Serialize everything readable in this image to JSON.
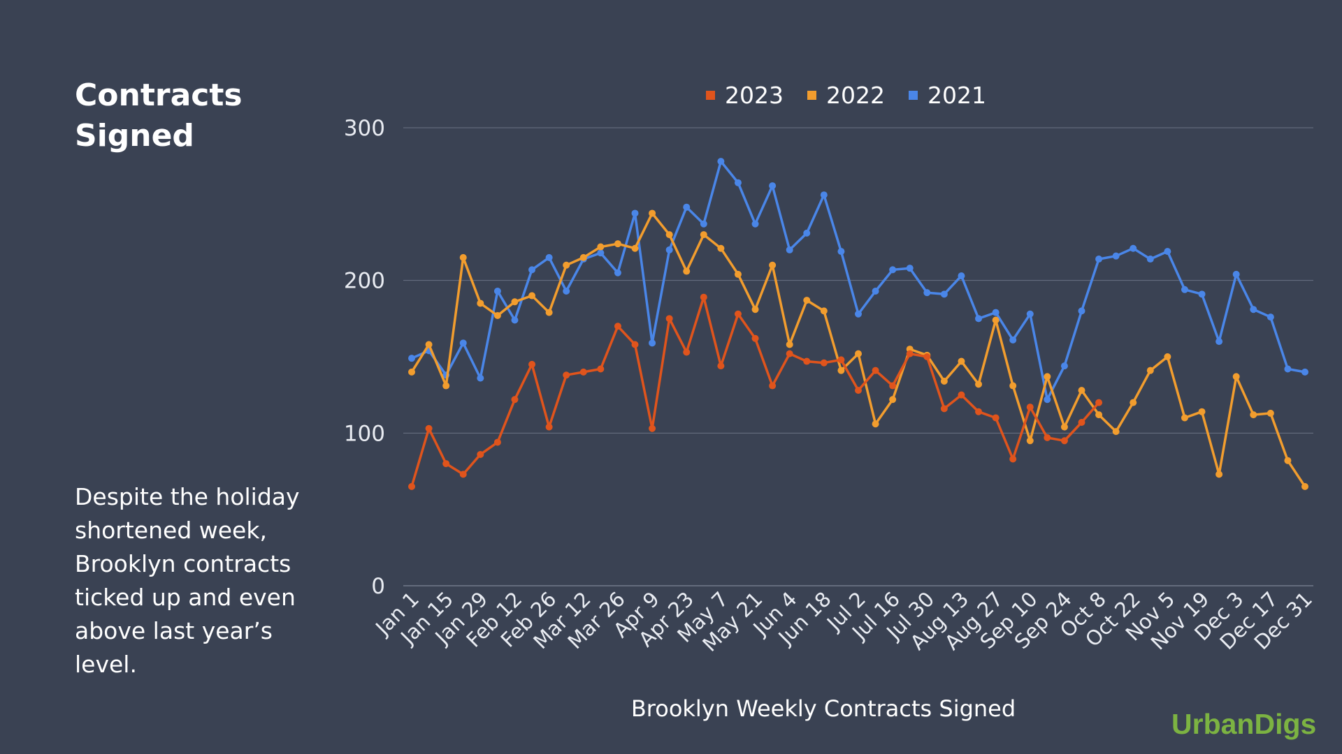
{
  "title_lines": [
    "Contracts",
    "Signed"
  ],
  "description": "Despite the holiday shortened week, Brooklyn contracts ticked up and even above last year’s level.",
  "brand": "UrbanDigs",
  "chart_data": {
    "type": "line",
    "title": "",
    "xlabel": "Brooklyn Weekly Contracts Signed",
    "ylabel": "",
    "ylim": [
      0,
      300
    ],
    "yticks": [
      0,
      100,
      200,
      300
    ],
    "grid": true,
    "legend_position": "top-center",
    "tick_labels": [
      "Jan 1",
      "Jan 15",
      "Jan 29",
      "Feb 12",
      "Feb 26",
      "Mar 12",
      "Mar 26",
      "Apr 9",
      "Apr 23",
      "May 7",
      "May 21",
      "Jun 4",
      "Jun 18",
      "Jul 2",
      "Jul 16",
      "Jul 30",
      "Aug 13",
      "Aug 27",
      "Sep 10",
      "Sep 24",
      "Oct 8",
      "Oct 22",
      "Nov 5",
      "Nov 19",
      "Dec 3",
      "Dec 17",
      "Dec 31"
    ],
    "weeks": 53,
    "series": [
      {
        "name": "2023",
        "color": "#e0541c",
        "values": [
          65,
          103,
          80,
          73,
          86,
          94,
          122,
          145,
          104,
          138,
          140,
          142,
          170,
          158,
          103,
          175,
          153,
          189,
          144,
          178,
          162,
          131,
          152,
          147,
          146,
          148,
          128,
          141,
          131,
          152,
          150,
          116,
          125,
          114,
          110,
          83,
          117,
          97,
          95,
          107,
          120
        ]
      },
      {
        "name": "2022",
        "color": "#f29d2e",
        "values": [
          140,
          158,
          131,
          215,
          185,
          177,
          186,
          190,
          179,
          210,
          215,
          222,
          224,
          221,
          244,
          230,
          206,
          230,
          221,
          204,
          181,
          210,
          158,
          187,
          180,
          141,
          152,
          106,
          122,
          155,
          151,
          134,
          147,
          132,
          174,
          131,
          95,
          137,
          104,
          128,
          112,
          101,
          120,
          141,
          150,
          110,
          114,
          73,
          137,
          112,
          113,
          82,
          65
        ]
      },
      {
        "name": "2021",
        "color": "#4a86e8",
        "values": [
          149,
          154,
          138,
          159,
          136,
          193,
          174,
          207,
          215,
          193,
          214,
          218,
          205,
          244,
          159,
          220,
          248,
          237,
          278,
          264,
          237,
          262,
          220,
          231,
          256,
          219,
          178,
          193,
          207,
          208,
          192,
          191,
          203,
          175,
          179,
          161,
          178,
          122,
          144,
          180,
          214,
          216,
          221,
          214,
          219,
          194,
          191,
          160,
          204,
          181,
          176,
          142,
          140
        ]
      }
    ]
  }
}
